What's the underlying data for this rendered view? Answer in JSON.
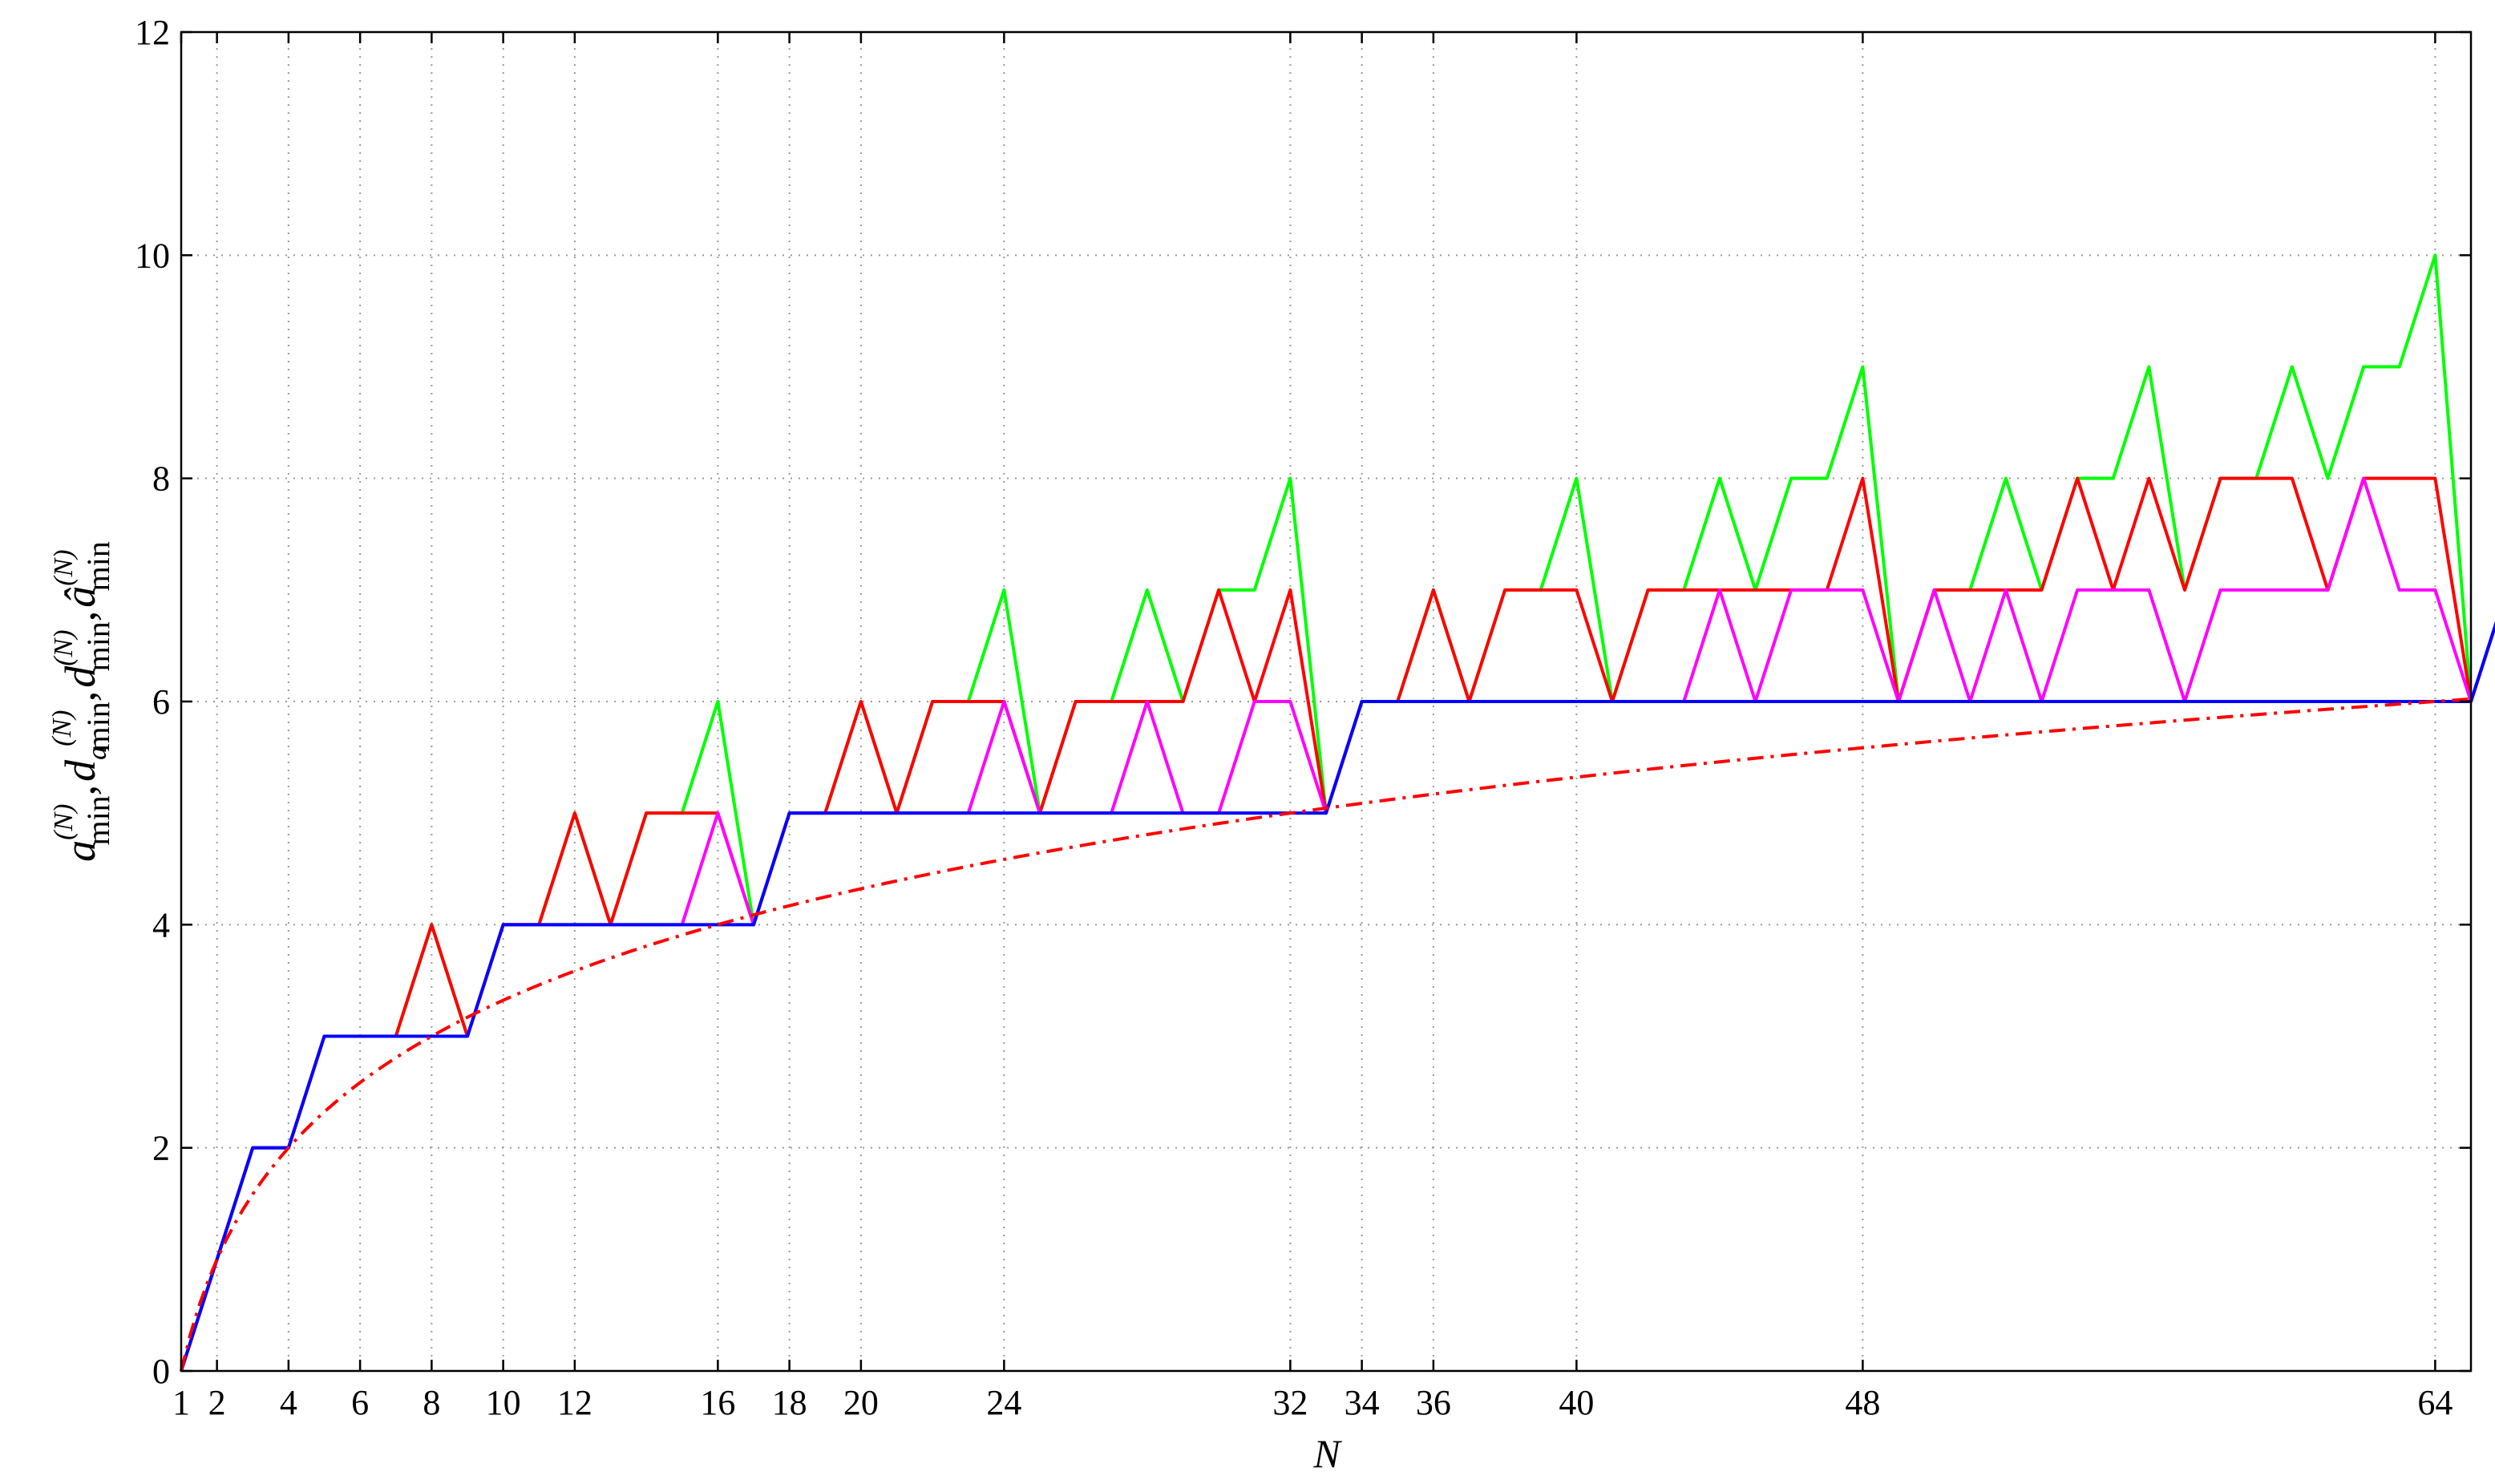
{
  "chart_data": {
    "type": "line",
    "xlabel": "N",
    "ylabel": {
      "var1": "a",
      "sup1": "(N)",
      "sub1": "min",
      "var2": "d",
      "sub2var": "a",
      "sup2": "(N)",
      "sub2": "min",
      "var3": "d",
      "sup3": "(N)",
      "sub3": "min",
      "var4": "â",
      "sup4": "(N)",
      "sub4": "min",
      "sep": ","
    },
    "xlim": [
      1,
      65
    ],
    "ylim": [
      0,
      12
    ],
    "xticks": [
      1,
      2,
      4,
      6,
      8,
      10,
      12,
      16,
      18,
      20,
      24,
      32,
      34,
      36,
      40,
      48,
      64
    ],
    "yticks": [
      0,
      2,
      4,
      6,
      8,
      10,
      12
    ],
    "grid": true,
    "series_colors": {
      "blue": "#0000ff",
      "magenta": "#ff00ff",
      "green": "#00ff00",
      "red": "#ff0000",
      "bound": "#ff0000"
    },
    "series": [
      {
        "color": "#00ff00",
        "values": [
          0,
          1,
          2,
          2,
          3,
          3,
          3,
          4,
          3,
          4,
          4,
          5,
          4,
          5,
          5,
          6,
          4,
          5,
          5,
          6,
          5,
          6,
          6,
          7,
          5,
          6,
          6,
          7,
          6,
          7,
          7,
          8,
          5,
          6,
          6,
          7,
          6,
          7,
          7,
          8,
          6,
          7,
          7,
          8,
          7,
          8,
          8,
          9,
          6,
          7,
          7,
          8,
          7,
          8,
          8,
          9,
          7,
          8,
          8,
          9,
          8,
          9,
          9,
          10,
          6,
          7
        ]
      },
      {
        "color": "#ff0000",
        "values": [
          0,
          1,
          2,
          2,
          3,
          3,
          3,
          4,
          3,
          4,
          4,
          5,
          4,
          5,
          5,
          5,
          4,
          5,
          5,
          6,
          5,
          6,
          6,
          6,
          5,
          6,
          6,
          6,
          6,
          7,
          6,
          7,
          5,
          6,
          6,
          7,
          6,
          7,
          7,
          7,
          6,
          7,
          7,
          7,
          7,
          7,
          7,
          8,
          6,
          7,
          7,
          7,
          7,
          8,
          7,
          8,
          7,
          8,
          8,
          8,
          7,
          8,
          8,
          8,
          6,
          7
        ]
      },
      {
        "color": "#ff00ff",
        "values": [
          0,
          1,
          2,
          2,
          3,
          3,
          3,
          3,
          3,
          4,
          4,
          4,
          4,
          4,
          4,
          5,
          4,
          5,
          5,
          5,
          5,
          5,
          5,
          6,
          5,
          5,
          5,
          6,
          5,
          5,
          6,
          6,
          5,
          6,
          6,
          6,
          6,
          6,
          6,
          6,
          6,
          6,
          6,
          7,
          6,
          7,
          7,
          7,
          6,
          7,
          6,
          7,
          6,
          7,
          7,
          7,
          6,
          7,
          7,
          7,
          7,
          8,
          7,
          7,
          6,
          7
        ]
      },
      {
        "color": "#0000ff",
        "values": [
          0,
          1,
          2,
          2,
          3,
          3,
          3,
          3,
          3,
          4,
          4,
          4,
          4,
          4,
          4,
          4,
          4,
          5,
          5,
          5,
          5,
          5,
          5,
          5,
          5,
          5,
          5,
          5,
          5,
          5,
          5,
          5,
          5,
          6,
          6,
          6,
          6,
          6,
          6,
          6,
          6,
          6,
          6,
          6,
          6,
          6,
          6,
          6,
          6,
          6,
          6,
          6,
          6,
          6,
          6,
          6,
          6,
          6,
          6,
          6,
          6,
          6,
          6,
          6,
          6,
          7
        ]
      },
      {
        "color": "#ff0000",
        "style": "dash-dot",
        "function": "log2(N)"
      }
    ]
  }
}
